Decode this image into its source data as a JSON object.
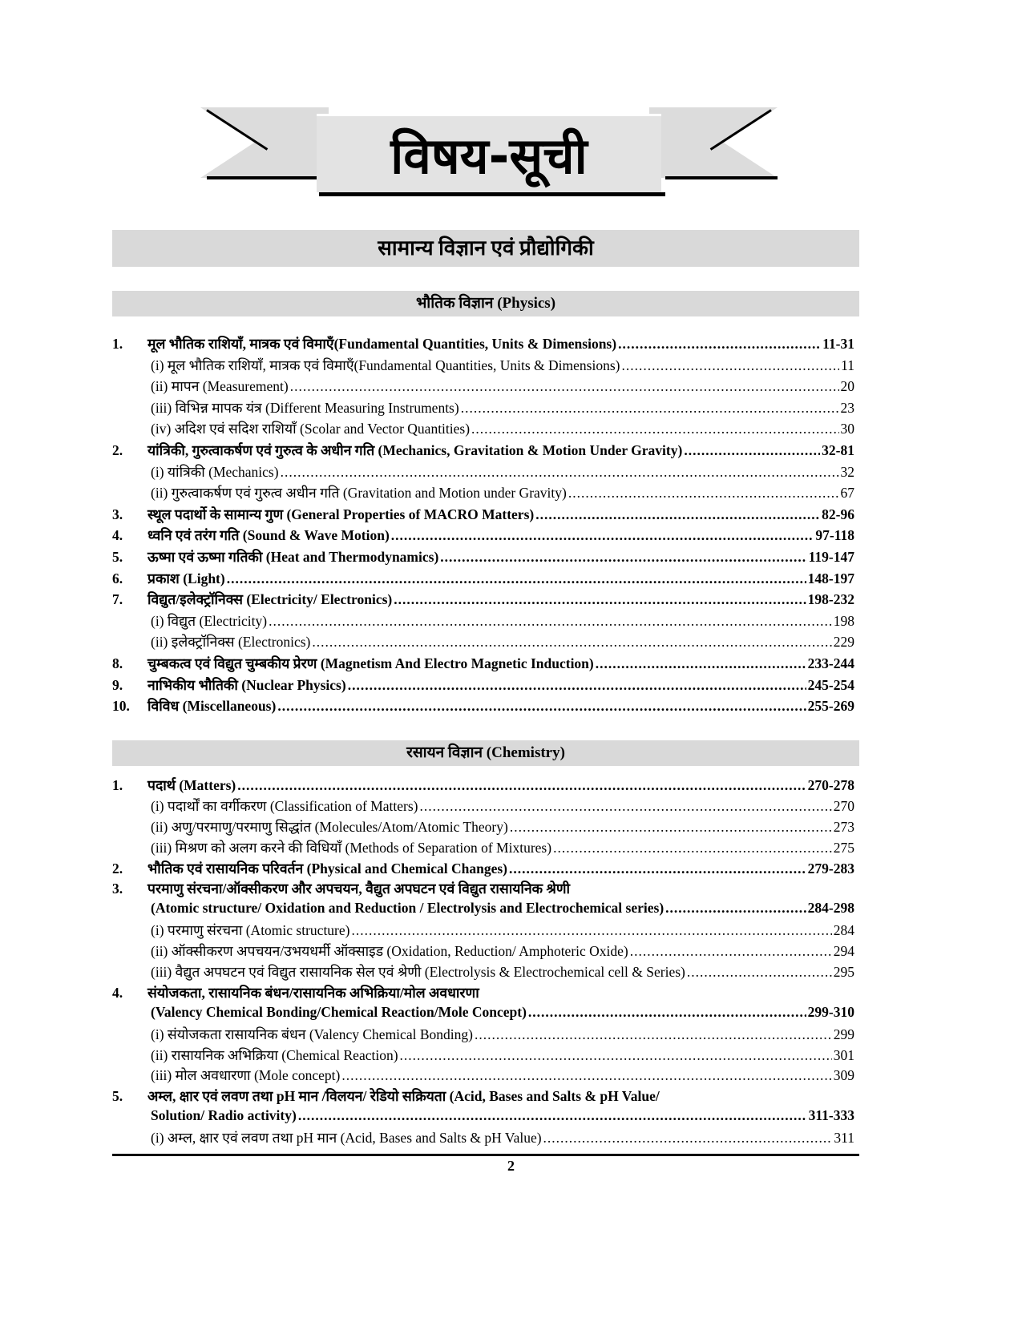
{
  "title": "विषय-सूची",
  "subject": "सामान्य विज्ञान एवं प्रौद्योगिकी",
  "sections": [
    {
      "heading": "भौतिक विज्ञान (Physics)",
      "rows": [
        {
          "num": "1.",
          "text": "मूल भौतिक राशियाँ, मात्रक एवं विमाएँ(Fundamental Quantities, Units & Dimensions)",
          "page": "11-31",
          "bold": true
        },
        {
          "text": "(i) मूल भौतिक राशियाँ, मात्रक एवं विमाएँ(Fundamental Quantities, Units & Dimensions)",
          "page": "11"
        },
        {
          "text": "(ii) मापन (Measurement)",
          "page": "20"
        },
        {
          "text": "(iii) विभिन्न मापक यंत्र (Different Measuring Instruments)",
          "page": "23"
        },
        {
          "text": "(iv) अदिश एवं सदिश राशियाँ (Scolar and Vector Quantities)",
          "page": "30"
        },
        {
          "num": "2.",
          "text": "यांत्रिकी, गुरुत्वाकर्षण एवं गुरुत्व के अधीन गति (Mechanics, Gravitation & Motion Under Gravity)",
          "page": "32-81",
          "bold": true
        },
        {
          "text": "(i) यांत्रिकी (Mechanics)",
          "page": "32"
        },
        {
          "text": "(ii) गुरुत्वाकर्षण एवं गुरुत्व अधीन गति (Gravitation and Motion under Gravity)",
          "page": "67"
        },
        {
          "num": "3.",
          "text": "स्थूल पदार्थो के सामान्य गुण (General Properties of MACRO Matters)",
          "page": "82-96",
          "bold": true
        },
        {
          "num": "4.",
          "text": "ध्वनि एवं तरंग गति (Sound & Wave Motion)",
          "page": "97-118",
          "bold": true
        },
        {
          "num": "5.",
          "text": "ऊष्मा एवं ऊष्मा गतिकी (Heat and Thermodynamics)",
          "page": "119-147",
          "bold": true
        },
        {
          "num": "6.",
          "text": "प्रकाश (Light)",
          "page": "148-197",
          "bold": true
        },
        {
          "num": "7.",
          "text": "विद्युत/इलेक्ट्रॉनिक्स (Electricity/ Electronics)",
          "page": "198-232",
          "bold": true
        },
        {
          "text": "(i) विद्युत (Electricity)",
          "page": "198"
        },
        {
          "text": "(ii) इलेक्ट्रॉनिक्स (Electronics)",
          "page": "229"
        },
        {
          "num": "8.",
          "text": "चुम्बकत्व एवं विद्युत चुम्बकीय प्रेरण (Magnetism And Electro Magnetic Induction)",
          "page": "233-244",
          "bold": true
        },
        {
          "num": "9.",
          "text": "नाभिकीय भौतिकी (Nuclear Physics)",
          "page": "245-254",
          "bold": true
        },
        {
          "num": "10.",
          "text": "विविध (Miscellaneous)",
          "page": "255-269",
          "bold": true
        }
      ]
    },
    {
      "heading": "रसायन विज्ञान (Chemistry)",
      "rows": [
        {
          "num": "1.",
          "text": "पदार्थ (Matters)",
          "page": "270-278",
          "bold": true
        },
        {
          "text": "(i) पदार्थों का वर्गीकरण (Classification of Matters)",
          "page": "270"
        },
        {
          "text": "(ii) अणु/परमाणु/परमाणु सिद्धांत (Molecules/Atom/Atomic Theory)",
          "page": "273"
        },
        {
          "text": "(iii) मिश्रण को अलग करने की विधियाँ (Methods of Separation of Mixtures)",
          "page": "275"
        },
        {
          "num": "2.",
          "text": "भौतिक एवं रासायनिक परिवर्तन (Physical and Chemical Changes)",
          "page": "279-283",
          "bold": true
        },
        {
          "num": "3.",
          "text": "परमाणु संरचना/ऑक्सीकरण और अपचयन, वैद्युत अपघटन एवं विद्युत रासायनिक श्रेणी",
          "bold": true
        },
        {
          "text": "(Atomic structure/ Oxidation and Reduction / Electrolysis and Electrochemical series)",
          "page": "284-298",
          "bold": true
        },
        {
          "text": "(i) परमाणु संरचना (Atomic structure)",
          "page": "284"
        },
        {
          "text": "(ii) ऑक्सीकरण अपचयन/उभयधर्मी ऑक्साइड (Oxidation, Reduction/ Amphoteric Oxide)",
          "page": "294"
        },
        {
          "text": "(iii) वैद्युत अपघटन एवं विद्युत रासायनिक सेल एवं श्रेणी (Electrolysis & Electrochemical cell & Series)",
          "page": "295"
        },
        {
          "num": "4.",
          "text": "संयोजकता, रासायनिक बंधन/रासायनिक अभिक्रिया/मोल अवधारणा",
          "bold": true
        },
        {
          "text": "(Valency Chemical Bonding/Chemical Reaction/Mole Concept)",
          "page": "299-310",
          "bold": true
        },
        {
          "text": "(i) संयोजकता रासायनिक बंधन (Valency Chemical Bonding)",
          "page": "299"
        },
        {
          "text": "(ii) रासायनिक अभिक्रिया (Chemical Reaction)",
          "page": "301"
        },
        {
          "text": "(iii) मोल अवधारणा (Mole concept)",
          "page": "309"
        },
        {
          "num": "5.",
          "text": "अम्ल, क्षार एवं लवण तथा pH मान /विलयन/ रेडियो सक्रियता (Acid, Bases and Salts & pH Value/",
          "bold": true
        },
        {
          "text": "Solution/ Radio activity)",
          "page": "311-333",
          "bold": true
        },
        {
          "text": "(i) अम्ल, क्षार एवं लवण तथा pH मान (Acid, Bases and Salts & pH Value)",
          "page": "311"
        }
      ]
    }
  ],
  "page_number": "2"
}
